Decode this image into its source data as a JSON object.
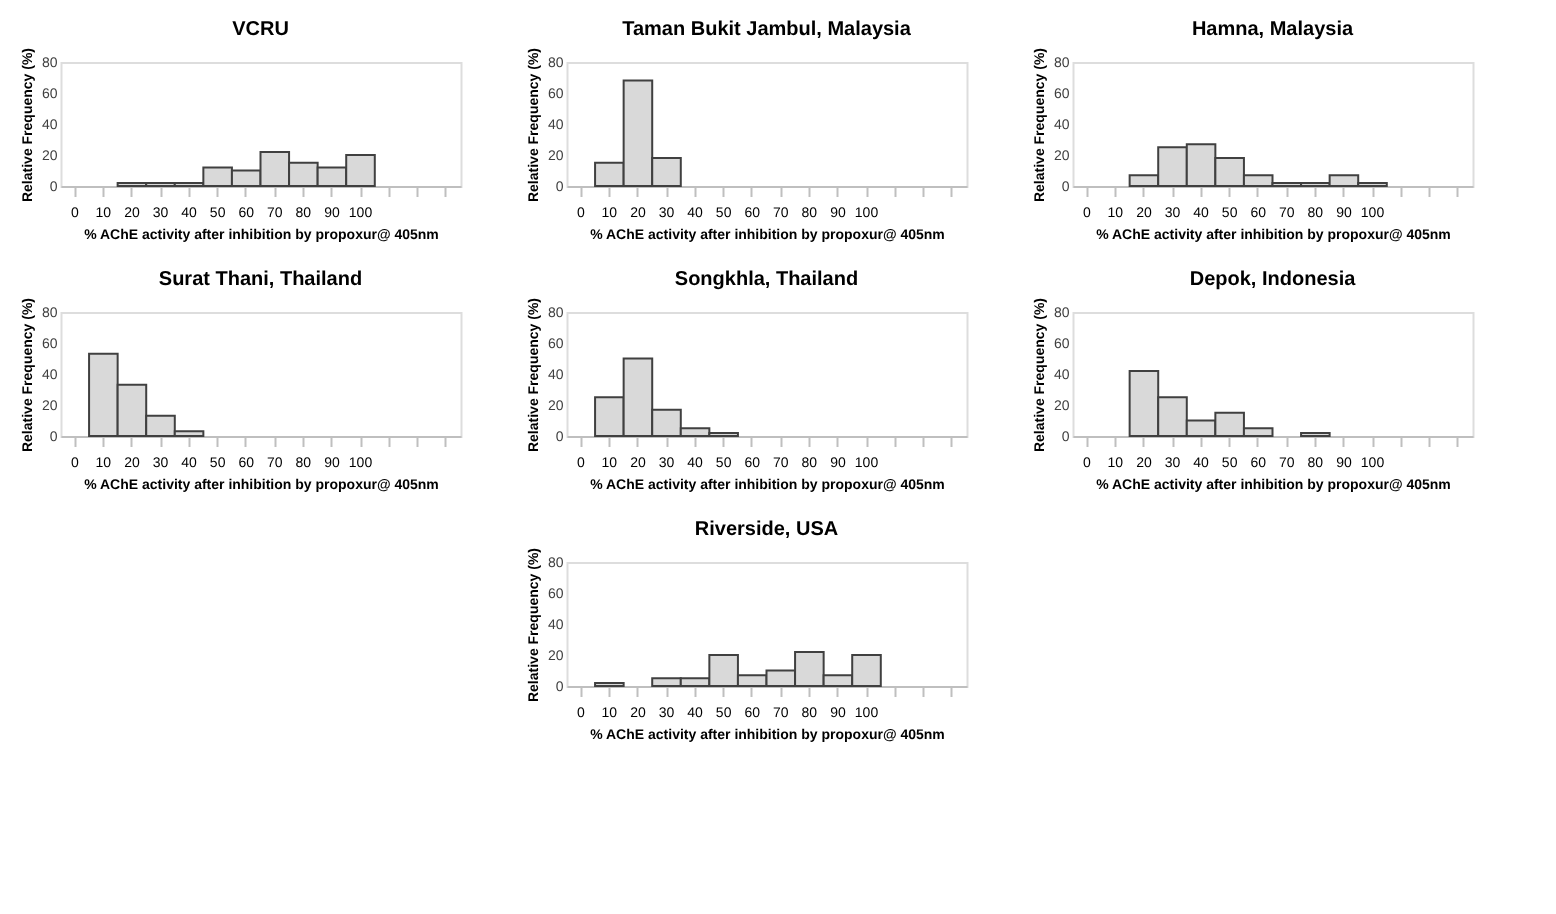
{
  "chart_data": [
    {
      "type": "bar",
      "title": "VCRU",
      "categories": [
        "0",
        "10",
        "20",
        "30",
        "40",
        "50",
        "60",
        "70",
        "80",
        "90",
        "100",
        null,
        null,
        null
      ],
      "values": [
        0,
        0,
        2,
        2,
        2,
        12,
        10,
        22,
        15,
        12,
        20,
        null,
        null,
        null
      ],
      "color": "#d9d9d9",
      "ylim": [
        0,
        80
      ],
      "yticks": [
        0,
        20,
        40,
        60,
        80
      ],
      "xlabel": "% AChE activity after inhibition by propoxur@ 405nm",
      "ylabel": "Relative Frequency (%)"
    },
    {
      "type": "bar",
      "title": "Taman Bukit Jambul, Malaysia",
      "categories": [
        "0",
        "10",
        "20",
        "30",
        "40",
        "50",
        "60",
        "70",
        "80",
        "90",
        "100",
        null,
        null,
        null
      ],
      "values": [
        0,
        15,
        68,
        18,
        0,
        0,
        0,
        0,
        0,
        0,
        0,
        null,
        null,
        null
      ],
      "color": "#d9d9d9",
      "ylim": [
        0,
        80
      ],
      "yticks": [
        0,
        20,
        40,
        60,
        80
      ],
      "xlabel": "% AChE activity after inhibition by propoxur@ 405nm",
      "ylabel": "Relative Frequency (%)"
    },
    {
      "type": "bar",
      "title": "Hamna, Malaysia",
      "categories": [
        "0",
        "10",
        "20",
        "30",
        "40",
        "50",
        "60",
        "70",
        "80",
        "90",
        "100",
        null,
        null,
        null
      ],
      "values": [
        0,
        0,
        7,
        25,
        27,
        18,
        7,
        2,
        2,
        7,
        2,
        null,
        null,
        null
      ],
      "color": "#d9d9d9",
      "ylim": [
        0,
        80
      ],
      "yticks": [
        0,
        20,
        40,
        60,
        80
      ],
      "xlabel": "% AChE activity after inhibition by propoxur@ 405nm",
      "ylabel": "Relative Frequency (%)"
    },
    {
      "type": "bar",
      "title": "Surat Thani, Thailand",
      "categories": [
        "0",
        "10",
        "20",
        "30",
        "40",
        "50",
        "60",
        "70",
        "80",
        "90",
        "100",
        null,
        null,
        null
      ],
      "values": [
        0,
        53,
        33,
        13,
        3,
        0,
        0,
        0,
        0,
        0,
        0,
        null,
        null,
        null
      ],
      "color": "#d9d9d9",
      "ylim": [
        0,
        80
      ],
      "yticks": [
        0,
        20,
        40,
        60,
        80
      ],
      "xlabel": "% AChE activity after inhibition by propoxur@ 405nm",
      "ylabel": "Relative Frequency (%)"
    },
    {
      "type": "bar",
      "title": "Songkhla, Thailand",
      "categories": [
        "0",
        "10",
        "20",
        "30",
        "40",
        "50",
        "60",
        "70",
        "80",
        "90",
        "100",
        null,
        null,
        null
      ],
      "values": [
        0,
        25,
        50,
        17,
        5,
        2,
        0,
        0,
        0,
        0,
        0,
        null,
        null,
        null
      ],
      "color": "#d9d9d9",
      "ylim": [
        0,
        80
      ],
      "yticks": [
        0,
        20,
        40,
        60,
        80
      ],
      "xlabel": "% AChE activity after inhibition by propoxur@ 405nm",
      "ylabel": "Relative Frequency (%)"
    },
    {
      "type": "bar",
      "title": "Depok, Indonesia",
      "categories": [
        "0",
        "10",
        "20",
        "30",
        "40",
        "50",
        "60",
        "70",
        "80",
        "90",
        "100",
        null,
        null,
        null
      ],
      "values": [
        0,
        0,
        42,
        25,
        10,
        15,
        5,
        0,
        2,
        0,
        0,
        null,
        null,
        null
      ],
      "color": "#d9d9d9",
      "ylim": [
        0,
        80
      ],
      "yticks": [
        0,
        20,
        40,
        60,
        80
      ],
      "xlabel": "% AChE activity after inhibition by propoxur@ 405nm",
      "ylabel": "Relative Frequency (%)"
    },
    {
      "type": "bar",
      "title": "Riverside, USA",
      "categories": [
        "0",
        "10",
        "20",
        "30",
        "40",
        "50",
        "60",
        "70",
        "80",
        "90",
        "100",
        null,
        null,
        null
      ],
      "values": [
        0,
        2,
        0,
        5,
        5,
        20,
        7,
        10,
        22,
        7,
        20,
        null,
        null,
        null
      ],
      "color": "#d9d9d9",
      "ylim": [
        0,
        80
      ],
      "yticks": [
        0,
        20,
        40,
        60,
        80
      ],
      "xlabel": "% AChE activity after inhibition by propoxur@ 405nm",
      "ylabel": "Relative Frequency (%)"
    }
  ]
}
